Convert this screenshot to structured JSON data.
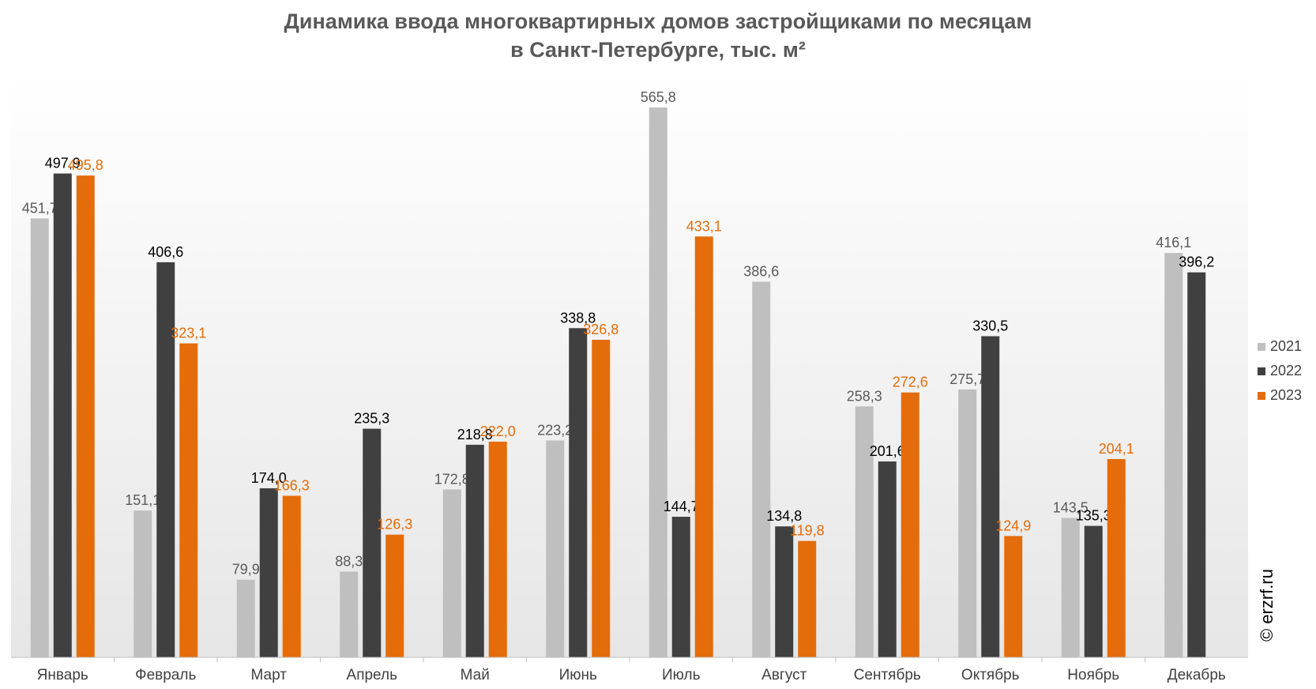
{
  "watermark": "© erzrf.ru",
  "chart_data": {
    "type": "bar",
    "title": [
      "Динамика ввода многоквартирных домов застройщиками по месяцам",
      "в Санкт-Петербурге, тыс. м²"
    ],
    "categories": [
      "Январь",
      "Февраль",
      "Март",
      "Апрель",
      "Май",
      "Июнь",
      "Июль",
      "Август",
      "Сентябрь",
      "Октябрь",
      "Ноябрь",
      "Декабрь"
    ],
    "series": [
      {
        "name": "2021",
        "color": "#bfbfbf",
        "label_color": "#595959",
        "values": [
          451.7,
          151.1,
          79.9,
          88.3,
          172.8,
          223.2,
          565.8,
          386.6,
          258.3,
          275.7,
          143.5,
          416.1
        ],
        "labels": [
          "451,7",
          "151,1",
          "79,9",
          "88,3",
          "172,8",
          "223,2",
          "565,8",
          "386,6",
          "258,3",
          "275,7",
          "143,5",
          "416,1"
        ]
      },
      {
        "name": "2022",
        "color": "#404040",
        "label_color": "#000000",
        "values": [
          497.9,
          406.6,
          174.0,
          235.3,
          218.8,
          338.8,
          144.7,
          134.8,
          201.6,
          330.5,
          135.3,
          396.2
        ],
        "labels": [
          "497,9",
          "406,6",
          "174,0",
          "235,3",
          "218,8",
          "338,8",
          "144,7",
          "134,8",
          "201,6",
          "330,5",
          "135,3",
          "396,2"
        ]
      },
      {
        "name": "2023",
        "color": "#e46c0a",
        "label_color": "#e46c0a",
        "values": [
          495.8,
          323.1,
          166.3,
          126.3,
          222.0,
          326.8,
          433.1,
          119.8,
          272.6,
          124.9,
          204.1,
          null
        ],
        "labels": [
          "495,8",
          "323,1",
          "166,3",
          "126,3",
          "222,0",
          "326,8",
          "433,1",
          "119,8",
          "272,6",
          "124,9",
          "204,1",
          ""
        ]
      }
    ],
    "ylim": [
      0,
      600
    ],
    "grid": false,
    "legend_position": "right",
    "background": "gradient-white-to-light-gray"
  }
}
